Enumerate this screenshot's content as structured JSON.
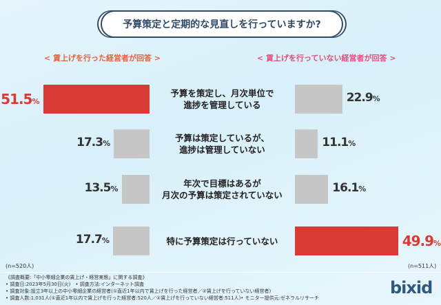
{
  "title": "予算策定と定期的な見直しを行っていますか?",
  "chart_data": {
    "type": "bar",
    "categories": [
      "予算を策定し、月次単位で\n進捗を管理している",
      "予算は策定しているが、\n進捗は管理していない",
      "年次で目標はあるが\n月次の予算は策定されていない",
      "特に予算策定は行っていない"
    ],
    "series": [
      {
        "name": "< 賃上げを行った経営者が回答 >",
        "values": [
          51.5,
          17.3,
          13.5,
          17.7
        ],
        "n": "(n=520人)",
        "highlight_color": "#d93a36"
      },
      {
        "name": "< 賃上げを行っていない経営者が回答 >",
        "values": [
          22.9,
          11.1,
          16.1,
          49.9
        ],
        "n": "(n=511人)",
        "highlight_color": "#d93a36"
      }
    ],
    "unit": "%",
    "gray_color": "#c6c6c6",
    "label_colors": [
      "#e0643c",
      "#e0507e"
    ]
  },
  "footnotes": [
    "《調査概要:「中小零細企業の賃上げ・経営実態」に関する調査》",
    "• 調査日:2023年5月30日(火)　• 調査方法:インターネット調査",
    "• 調査対象:設立3年以上の中小零細企業の経営者(①直近1年以内で賃上げを行った経営者／②賃上げを行っていない経営者)",
    "• 調査人数:1,031人(①直近1年以内で賃上げを行った経営者:520人／②賃上げを行っていない経営者:511人)• モニター提供元:ゼネラルリサーチ"
  ],
  "logo": "bixid"
}
